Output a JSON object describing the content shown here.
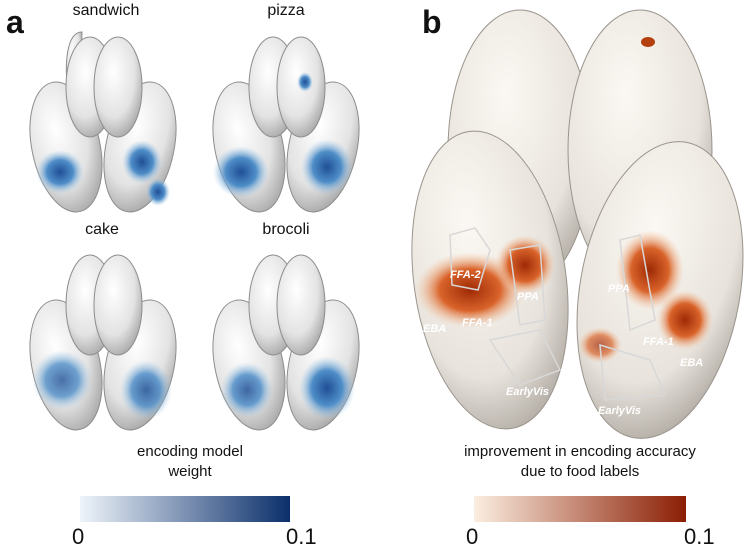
{
  "panel_a": {
    "letter": "a",
    "brains": [
      {
        "label": "sandwich"
      },
      {
        "label": "pizza"
      },
      {
        "label": "cake"
      },
      {
        "label": "brocoli"
      }
    ],
    "colorbar": {
      "caption_line1": "encoding model",
      "caption_line2": "weight",
      "min_label": "0",
      "max_label": "0.1",
      "color_low": "#eef4fa",
      "color_high": "#0b2f6b"
    }
  },
  "panel_b": {
    "letter": "b",
    "rois": {
      "ffa2": "FFA-2",
      "ppa_left": "PPA",
      "ppa_right": "PPA",
      "eba_left": "EBA",
      "ffa1_left": "FFA-1",
      "ffa1_right": "FFA-1",
      "eba_right": "EBA",
      "earlyvis_left": "EarlyVis",
      "earlyvis_right": "EarlyVis"
    },
    "colorbar": {
      "caption_line1": "improvement in encoding accuracy",
      "caption_line2": "due to food labels",
      "min_label": "0",
      "max_label": "0.1",
      "color_low": "#fbeee0",
      "color_high": "#8b1e04"
    }
  }
}
